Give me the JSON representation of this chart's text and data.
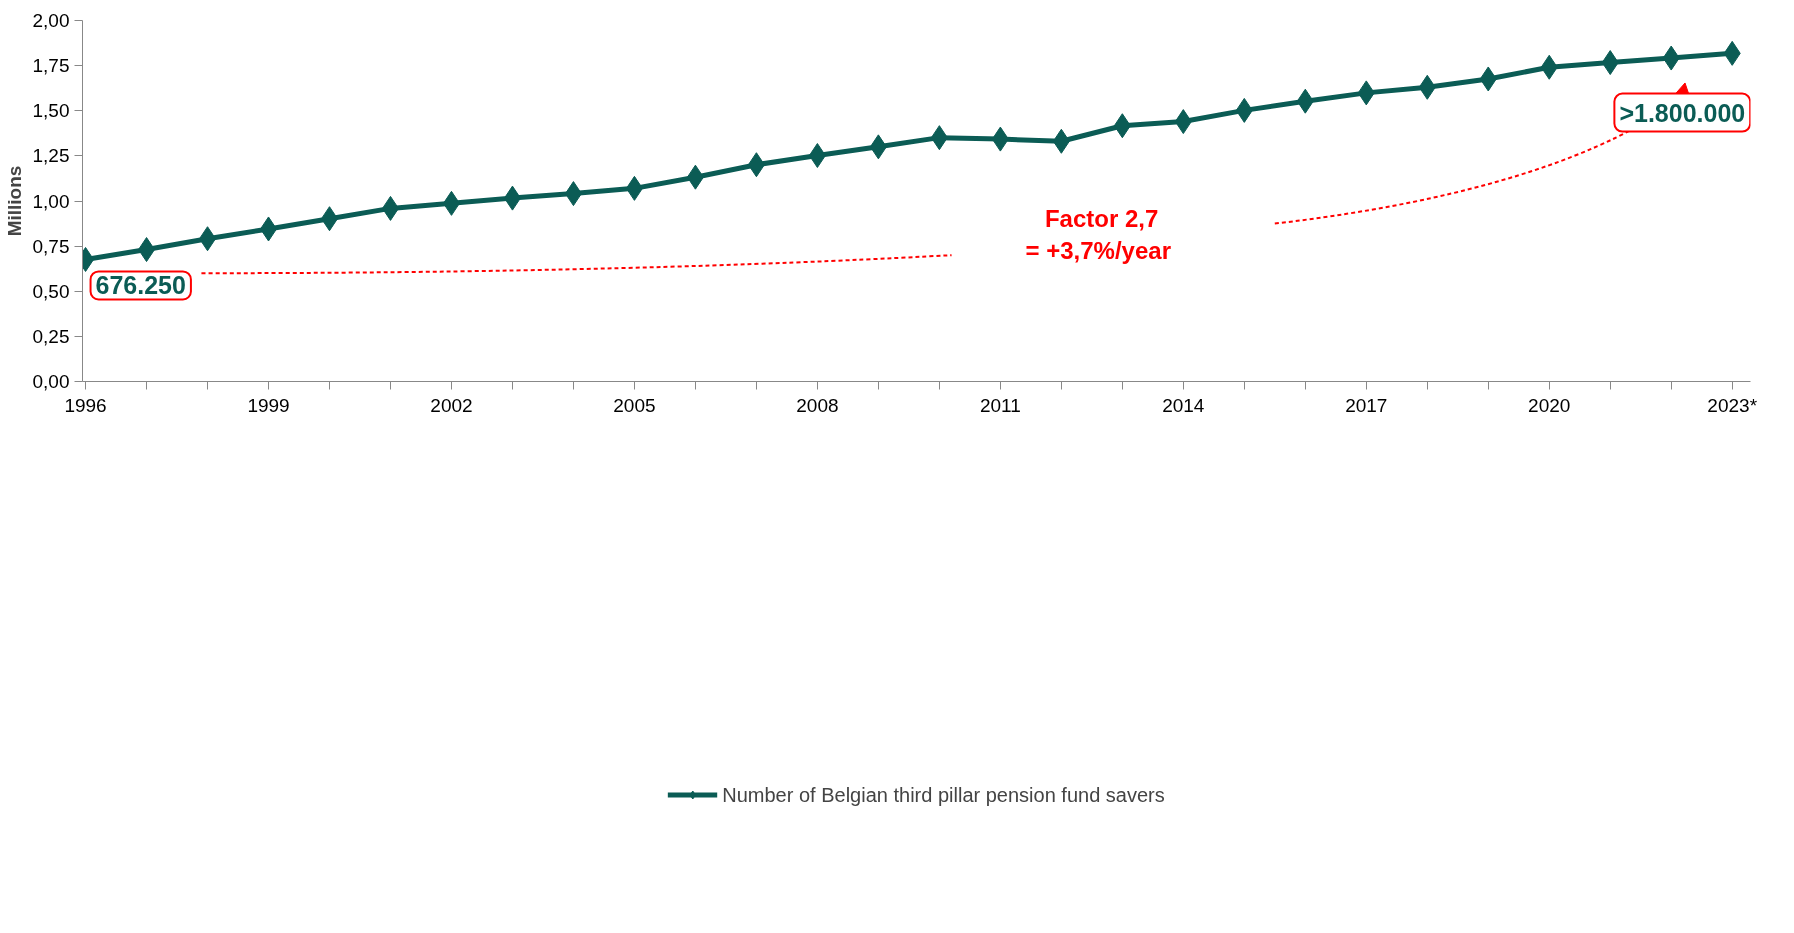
{
  "chart_data": {
    "type": "line",
    "ylabel": "Millions",
    "categories": [
      "1996",
      null,
      null,
      "1999",
      null,
      null,
      "2002",
      null,
      null,
      "2005",
      null,
      null,
      "2008",
      null,
      null,
      "2011",
      null,
      null,
      "2014",
      null,
      null,
      "2017",
      null,
      null,
      "2020",
      null,
      null,
      "2023*"
    ],
    "series": [
      {
        "name": "Number of Belgian third pillar pension fund savers",
        "color": "#0b5c55",
        "values": [
          0.676,
          0.731,
          0.791,
          0.845,
          0.902,
          0.959,
          0.987,
          1.016,
          1.041,
          1.07,
          1.132,
          1.201,
          1.252,
          1.3,
          1.351,
          1.343,
          1.331,
          1.417,
          1.44,
          1.502,
          1.553,
          1.599,
          1.63,
          1.676,
          1.741,
          1.767,
          1.792,
          1.818
        ]
      }
    ],
    "ylim": [
      0,
      2
    ],
    "yticks": [
      {
        "value": 0,
        "label": "0,00"
      },
      {
        "value": 0.25,
        "label": "0,25"
      },
      {
        "value": 0.5,
        "label": "0,50"
      },
      {
        "value": 0.75,
        "label": "0,75"
      },
      {
        "value": 1,
        "label": "1,00"
      },
      {
        "value": 1.25,
        "label": "1,25"
      },
      {
        "value": 1.5,
        "label": "1,50"
      },
      {
        "value": 1.75,
        "label": "1,75"
      },
      {
        "value": 2,
        "label": "2,00"
      }
    ],
    "annotations": [
      {
        "text": "676.250",
        "x": "1996",
        "y": 0.67625
      },
      {
        "text": ">1.800.000",
        "x": "2023*",
        "y": 1.8
      },
      "Factor 2,7\n=  +3,7%/year"
    ],
    "marker": "diamond",
    "line_style": "solid",
    "grid": false,
    "legend": "bottom"
  }
}
